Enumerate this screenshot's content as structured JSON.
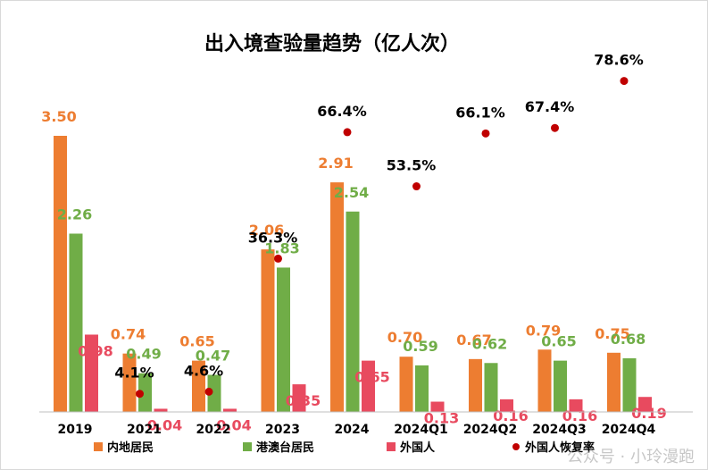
{
  "chart_data": {
    "type": "bar",
    "title": "出入境查验量趋势（亿人次）",
    "categories": [
      "2019",
      "2021",
      "2022",
      "2023",
      "2024",
      "2024Q1",
      "2024Q2",
      "2024Q3",
      "2024Q4"
    ],
    "series": [
      {
        "name": "内地居民",
        "color": "#ED7D31",
        "values": [
          3.5,
          0.74,
          0.65,
          2.06,
          2.91,
          0.7,
          0.67,
          0.79,
          0.75
        ],
        "labels": [
          "3.50",
          "0.74",
          "0.65",
          "2.06",
          "2.91",
          "0.70",
          "0.67",
          "0.79",
          "0.75"
        ]
      },
      {
        "name": "港澳台居民",
        "color": "#70AD47",
        "values": [
          2.26,
          0.49,
          0.47,
          1.83,
          2.54,
          0.59,
          0.62,
          0.65,
          0.68
        ],
        "labels": [
          "2.26",
          "0.49",
          "0.47",
          "1.83",
          "2.54",
          "0.59",
          "0.62",
          "0.65",
          "0.68"
        ]
      },
      {
        "name": "外国人",
        "color": "#E84A5F",
        "values": [
          0.98,
          0.04,
          0.04,
          0.35,
          0.65,
          0.13,
          0.16,
          0.16,
          0.19
        ],
        "labels": [
          "0.98",
          "0.04",
          "0.04",
          "0.35",
          "0.65",
          "0.13",
          "0.16",
          "0.16",
          "0.19"
        ]
      }
    ],
    "recovery": {
      "name": "外国人恢复率",
      "type": "scatter",
      "color": "#C00000",
      "values": [
        null,
        4.1,
        4.6,
        36.3,
        66.4,
        53.5,
        66.1,
        67.4,
        78.6
      ],
      "labels": [
        "",
        "4.1%",
        "4.6%",
        "36.3%",
        "66.4%",
        "53.5%",
        "66.1%",
        "67.4%",
        "78.6%"
      ]
    },
    "ylim": [
      0,
      3.5
    ],
    "grid": false,
    "legend": "bottom"
  },
  "watermark": "公众号 · 小玲漫跑"
}
